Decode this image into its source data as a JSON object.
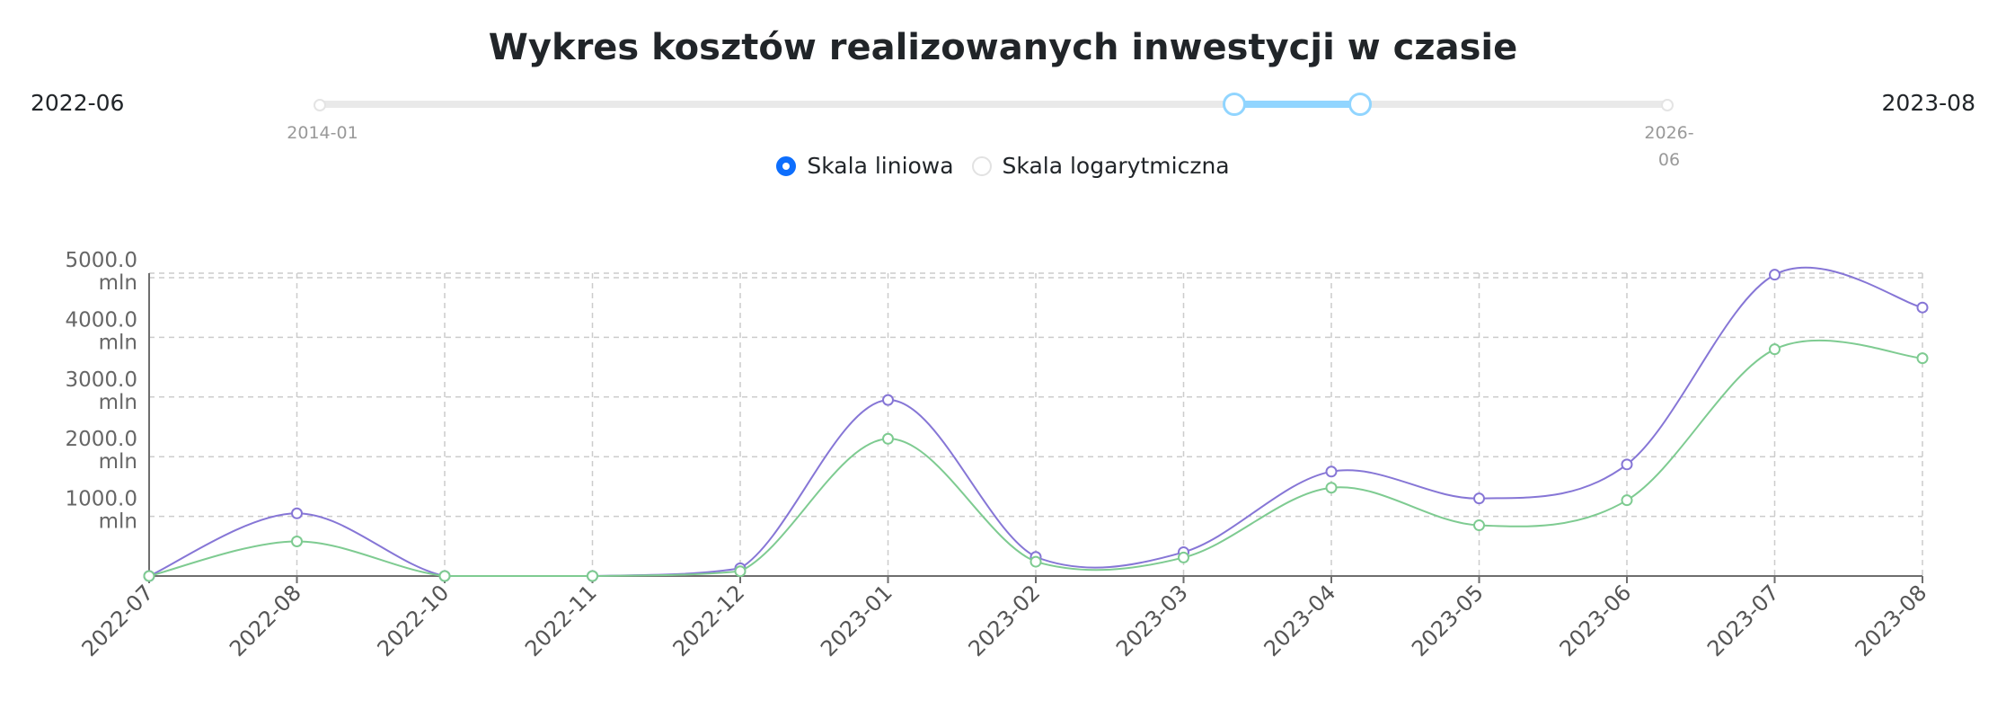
{
  "title": "Wykres kosztów realizowanych inwestycji w czasie",
  "range": {
    "selected_start": "2022-06",
    "selected_end": "2023-08",
    "min_label": "2014-01",
    "max_label_line1": "2026-",
    "max_label_line2": "06"
  },
  "scale_options": [
    {
      "label": "Skala liniowa",
      "checked": true
    },
    {
      "label": "Skala logarytmiczna",
      "checked": false
    }
  ],
  "colors": {
    "series1": "#8676d6",
    "series2": "#7ecb91",
    "grid": "#cccccc",
    "axis": "#6e6e6e",
    "slider_selected": "#91d5ff",
    "radio_checked": "#0d6efd"
  },
  "chart_data": {
    "type": "line",
    "categories": [
      "2022-07",
      "2022-08",
      "2022-10",
      "2022-11",
      "2022-12",
      "2023-01",
      "2023-02",
      "2023-03",
      "2023-04",
      "2023-05",
      "2023-06",
      "2023-07",
      "2023-08"
    ],
    "series": [
      {
        "values": [
          0,
          1050,
          0,
          0,
          130,
          2950,
          320,
          400,
          1750,
          1300,
          1870,
          5050,
          4500
        ]
      },
      {
        "values": [
          0,
          580,
          0,
          0,
          80,
          2300,
          240,
          310,
          1480,
          850,
          1270,
          3800,
          3650
        ]
      }
    ],
    "yticks": [
      {
        "value": 1000,
        "line1": "1000.0",
        "line2": "mln"
      },
      {
        "value": 2000,
        "line1": "2000.0",
        "line2": "mln"
      },
      {
        "value": 3000,
        "line1": "3000.0",
        "line2": "mln"
      },
      {
        "value": 4000,
        "line1": "4000.0",
        "line2": "mln"
      },
      {
        "value": 5000,
        "line1": "5000.0",
        "line2": "mln"
      }
    ],
    "ylim": [
      0,
      5000
    ],
    "grid": true,
    "smooth": true
  }
}
